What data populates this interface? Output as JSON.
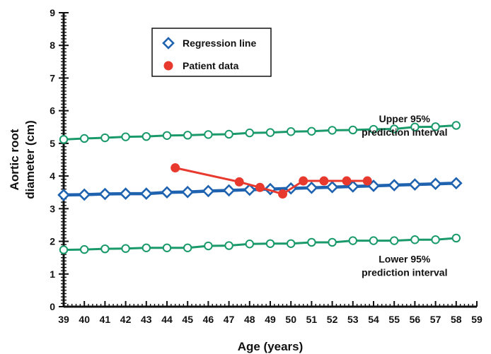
{
  "chart_data": {
    "type": "line",
    "title": "",
    "xlabel": "Age (years)",
    "ylabel_lines": [
      "Aortic root",
      "diameter (cm)"
    ],
    "xlim": [
      39,
      59
    ],
    "ylim": [
      0,
      9
    ],
    "x_ticks": [
      39,
      40,
      41,
      42,
      43,
      44,
      45,
      46,
      47,
      48,
      49,
      50,
      51,
      52,
      53,
      54,
      55,
      56,
      57,
      58,
      59
    ],
    "y_ticks": [
      0,
      1,
      2,
      3,
      4,
      5,
      6,
      7,
      8,
      9
    ],
    "grid": false,
    "legend_position": "top-center",
    "colors": {
      "regression": "#1f63b0",
      "patient": "#e8392e",
      "interval": "#1a9a6a",
      "axis": "#111111"
    },
    "series": [
      {
        "name": "Regression line",
        "marker": "diamond",
        "x": [
          39,
          40,
          41,
          42,
          43,
          44,
          45,
          46,
          47,
          48,
          49,
          50,
          51,
          52,
          53,
          54,
          55,
          56,
          57,
          58
        ],
        "y": [
          3.42,
          3.43,
          3.45,
          3.46,
          3.46,
          3.5,
          3.51,
          3.54,
          3.56,
          3.58,
          3.6,
          3.62,
          3.64,
          3.66,
          3.68,
          3.7,
          3.72,
          3.74,
          3.76,
          3.78
        ]
      },
      {
        "name": "Patient data",
        "marker": "dot",
        "x": [
          44.4,
          47.5,
          48.5,
          49.6,
          50.6,
          51.6,
          52.7,
          53.7
        ],
        "y": [
          4.25,
          3.82,
          3.65,
          3.45,
          3.85,
          3.85,
          3.85,
          3.85
        ]
      },
      {
        "marker": "circle",
        "x": [
          39,
          40,
          41,
          42,
          43,
          44,
          45,
          46,
          47,
          48,
          49,
          50,
          51,
          52,
          53,
          54,
          55,
          56,
          57,
          58
        ],
        "y": [
          5.12,
          5.15,
          5.17,
          5.2,
          5.21,
          5.24,
          5.25,
          5.27,
          5.28,
          5.32,
          5.33,
          5.36,
          5.37,
          5.4,
          5.41,
          5.43,
          5.44,
          5.5,
          5.51,
          5.55
        ]
      },
      {
        "marker": "circle",
        "x": [
          39,
          40,
          41,
          42,
          43,
          44,
          45,
          46,
          47,
          48,
          49,
          50,
          51,
          52,
          53,
          54,
          55,
          56,
          57,
          58
        ],
        "y": [
          1.74,
          1.75,
          1.77,
          1.78,
          1.8,
          1.8,
          1.8,
          1.86,
          1.87,
          1.92,
          1.93,
          1.93,
          1.97,
          1.97,
          2.02,
          2.02,
          2.02,
          2.05,
          2.05,
          2.1
        ]
      }
    ],
    "annotations": [
      {
        "lines": [
          "Upper 95%",
          "prediction interval"
        ],
        "x": 55.5,
        "y": 5.65
      },
      {
        "lines": [
          "Lower 95%",
          "prediction interval"
        ],
        "x": 55.5,
        "y": 1.35
      }
    ]
  }
}
